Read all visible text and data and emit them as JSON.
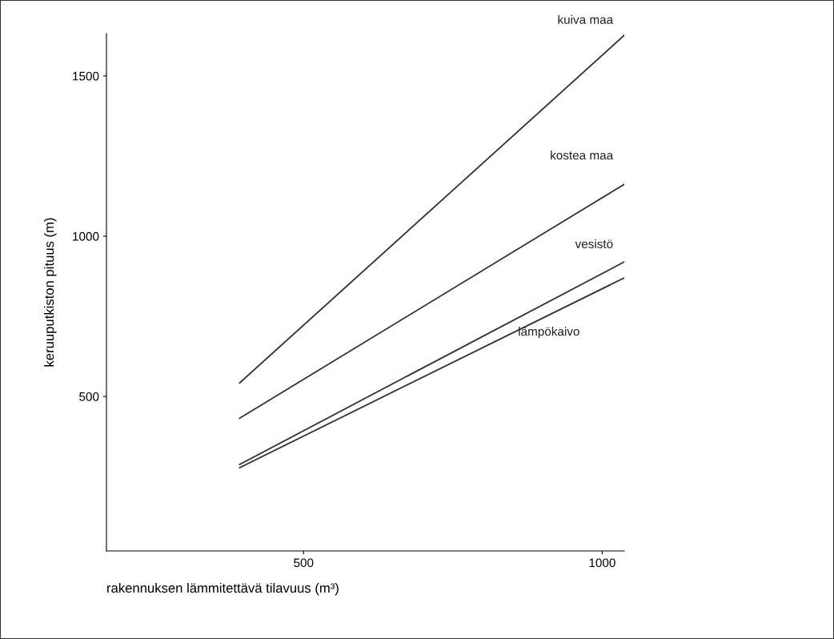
{
  "chart_data": {
    "type": "line",
    "xlabel": "rakennuksen lämmitettävä tilavuus (m³)",
    "ylabel": "keruuputkiston pituus (m)",
    "xlim": [
      170,
      1037
    ],
    "ylim": [
      18,
      1632
    ],
    "xticks": [
      500,
      1000
    ],
    "yticks": [
      500,
      1000,
      1500
    ],
    "grid": false,
    "legend": false,
    "marker": "none",
    "line_style": "solid",
    "x": [
      393,
      1037
    ],
    "series": [
      {
        "name": "kuiva maa",
        "color": "#333333",
        "values": [
          542,
          1627
        ]
      },
      {
        "name": "kostea maa",
        "color": "#333333",
        "values": [
          432,
          1162
        ]
      },
      {
        "name": "vesistö",
        "color": "#333333",
        "values": [
          288,
          920
        ]
      },
      {
        "name": "lämpökaivo",
        "color": "#333333",
        "values": [
          278,
          870
        ]
      }
    ]
  }
}
